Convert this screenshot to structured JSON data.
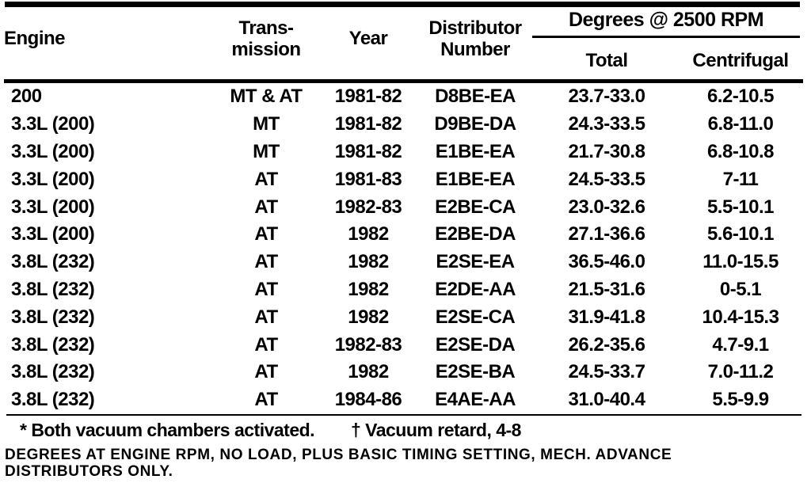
{
  "page": {
    "background": "#ffffff",
    "text_color": "#000000"
  },
  "table": {
    "group_header": {
      "degrees": "Degrees @ 2500 RPM"
    },
    "columns": {
      "engine": "Engine",
      "transmission_line1": "Trans-",
      "transmission_line2": "mission",
      "year": "Year",
      "distributor_line1": "Distributor",
      "distributor_line2": "Number",
      "total": "Total",
      "centrifugal": "Centrifugal"
    },
    "rows": [
      {
        "engine": "200",
        "transmission": "MT & AT",
        "year": "1981-82",
        "distributor": "D8BE-EA",
        "total": "23.7-33.0",
        "centrifugal": "6.2-10.5"
      },
      {
        "engine": "3.3L (200)",
        "transmission": "MT",
        "year": "1981-82",
        "distributor": "D9BE-DA",
        "total": "24.3-33.5",
        "centrifugal": "6.8-11.0"
      },
      {
        "engine": "3.3L (200)",
        "transmission": "MT",
        "year": "1981-82",
        "distributor": "E1BE-EA",
        "total": "21.7-30.8",
        "centrifugal": "6.8-10.8"
      },
      {
        "engine": "3.3L (200)",
        "transmission": "AT",
        "year": "1981-83",
        "distributor": "E1BE-EA",
        "total": "24.5-33.5",
        "centrifugal": "7-11"
      },
      {
        "engine": "3.3L (200)",
        "transmission": "AT",
        "year": "1982-83",
        "distributor": "E2BE-CA",
        "total": "23.0-32.6",
        "centrifugal": "5.5-10.1"
      },
      {
        "engine": "3.3L (200)",
        "transmission": "AT",
        "year": "1982",
        "distributor": "E2BE-DA",
        "total": "27.1-36.6",
        "centrifugal": "5.6-10.1"
      },
      {
        "engine": "3.8L (232)",
        "transmission": "AT",
        "year": "1982",
        "distributor": "E2SE-EA",
        "total": "36.5-46.0",
        "centrifugal": "11.0-15.5"
      },
      {
        "engine": "3.8L (232)",
        "transmission": "AT",
        "year": "1982",
        "distributor": "E2DE-AA",
        "total": "21.5-31.6",
        "centrifugal": "0-5.1"
      },
      {
        "engine": "3.8L (232)",
        "transmission": "AT",
        "year": "1982",
        "distributor": "E2SE-CA",
        "total": "31.9-41.8",
        "centrifugal": "10.4-15.3"
      },
      {
        "engine": "3.8L (232)",
        "transmission": "AT",
        "year": "1982-83",
        "distributor": "E2SE-DA",
        "total": "26.2-35.6",
        "centrifugal": "4.7-9.1"
      },
      {
        "engine": "3.8L (232)",
        "transmission": "AT",
        "year": "1982",
        "distributor": "E2SE-BA",
        "total": "24.5-33.7",
        "centrifugal": "7.0-11.2"
      },
      {
        "engine": "3.8L (232)",
        "transmission": "AT",
        "year": "1984-86",
        "distributor": "E4AE-AA",
        "total": "31.0-40.4",
        "centrifugal": "5.5-9.9"
      }
    ]
  },
  "footnotes": {
    "both_vacuum": "* Both vacuum chambers activated.",
    "vacuum_retard": "† Vacuum retard, 4-8"
  },
  "caption": {
    "lines": [
      "DEGREES AT ENGINE RPM, NO LOAD, PLUS BASIC TIMING SETTING, MECH. ADVANCE",
      "DISTRIBUTORS ONLY."
    ]
  }
}
